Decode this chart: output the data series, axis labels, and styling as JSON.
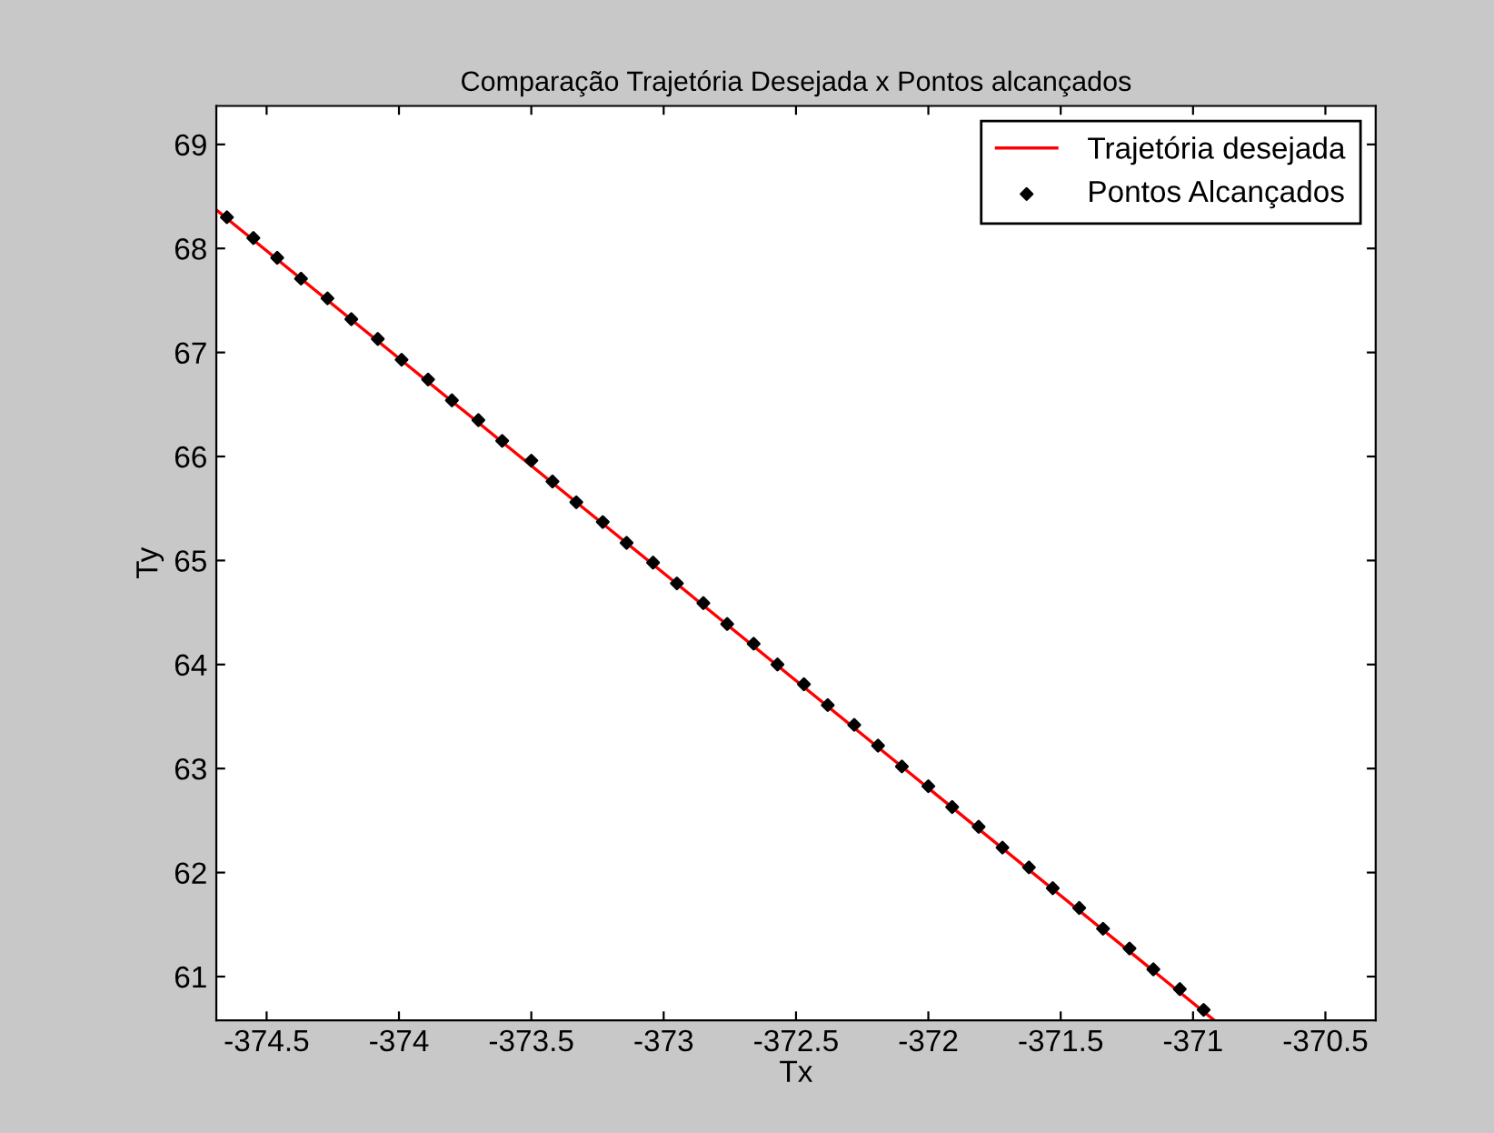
{
  "chart_data": {
    "type": "line",
    "title": "Comparação Trajetória Desejada x Pontos alcançados",
    "xlabel": "Tx",
    "ylabel": "Ty",
    "xlim": [
      -374.69,
      -370.31
    ],
    "ylim": [
      60.58,
      69.37
    ],
    "xticks": [
      -374.5,
      -374,
      -373.5,
      -373,
      -372.5,
      -372,
      -371.5,
      -371,
      -370.5
    ],
    "yticks": [
      61,
      62,
      63,
      64,
      65,
      66,
      67,
      68,
      69
    ],
    "grid": false,
    "legend": "top right",
    "series": [
      {
        "name": "Trajetória desejada",
        "color": "#ff0000",
        "marker": "none",
        "line_style": "solid",
        "x": [
          -374.69,
          -370.92
        ],
        "values": [
          68.37,
          60.58
        ]
      },
      {
        "name": "Pontos Alcançados",
        "type": "scatter",
        "color": "#000000",
        "marker": "diamond",
        "x": [
          -374.65,
          -374.55,
          -374.46,
          -374.37,
          -374.27,
          -374.18,
          -374.08,
          -373.99,
          -373.89,
          -373.8,
          -373.7,
          -373.61,
          -373.5,
          -373.42,
          -373.33,
          -373.23,
          -373.14,
          -373.04,
          -372.95,
          -372.85,
          -372.76,
          -372.66,
          -372.57,
          -372.47,
          -372.38,
          -372.28,
          -372.19,
          -372.1,
          -372.0,
          -371.91,
          -371.81,
          -371.72,
          -371.62,
          -371.53,
          -371.43,
          -371.34,
          -371.24,
          -371.15,
          -371.05,
          -370.96
        ],
        "values": [
          68.3,
          68.1,
          67.91,
          67.71,
          67.52,
          67.32,
          67.13,
          66.93,
          66.74,
          66.54,
          66.35,
          66.15,
          65.96,
          65.76,
          65.56,
          65.37,
          65.17,
          64.98,
          64.78,
          64.59,
          64.39,
          64.2,
          64.0,
          63.81,
          63.61,
          63.42,
          63.22,
          63.02,
          62.83,
          62.63,
          62.44,
          62.24,
          62.05,
          61.85,
          61.66,
          61.46,
          61.27,
          61.07,
          60.88,
          60.68
        ]
      }
    ]
  }
}
